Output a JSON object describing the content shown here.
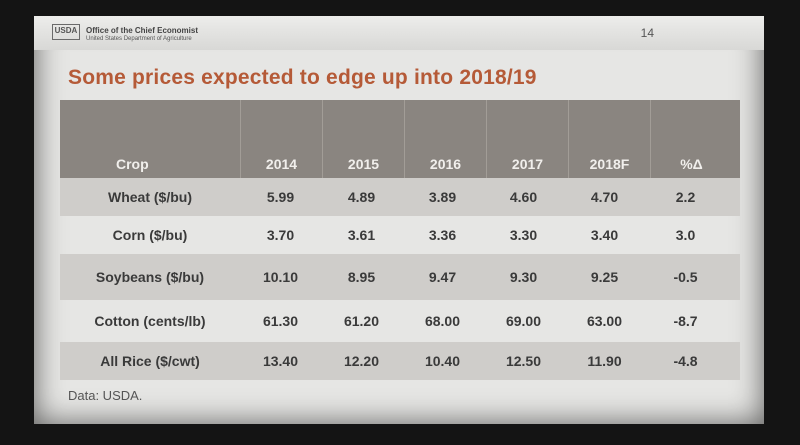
{
  "header": {
    "logo_text": "USDA",
    "office": "Office of the Chief Economist",
    "department": "United States Department of Agriculture",
    "slide_number": "14"
  },
  "title": "Some prices expected to edge up into 2018/19",
  "table": {
    "columns": [
      "Crop",
      "2014",
      "2015",
      "2016",
      "2017",
      "2018F",
      "%Δ"
    ],
    "rows": [
      {
        "crop": "Wheat ($/bu)",
        "values": [
          "5.99",
          "4.89",
          "3.89",
          "4.60",
          "4.70",
          "2.2"
        ]
      },
      {
        "crop": "Corn ($/bu)",
        "values": [
          "3.70",
          "3.61",
          "3.36",
          "3.30",
          "3.40",
          "3.0"
        ]
      },
      {
        "crop": "Soybeans ($/bu)",
        "values": [
          "10.10",
          "8.95",
          "9.47",
          "9.30",
          "9.25",
          "-0.5"
        ]
      },
      {
        "crop": "Cotton (cents/lb)",
        "values": [
          "61.30",
          "61.20",
          "68.00",
          "69.00",
          "63.00",
          "-8.7"
        ]
      },
      {
        "crop": "All Rice ($/cwt)",
        "values": [
          "13.40",
          "12.20",
          "10.40",
          "12.50",
          "11.90",
          "-4.8"
        ]
      }
    ]
  },
  "footnote": "Data: USDA.",
  "colors": {
    "title": "#b55a37",
    "header_bg": "#8a8580",
    "row_shade": "#cfcdca"
  }
}
